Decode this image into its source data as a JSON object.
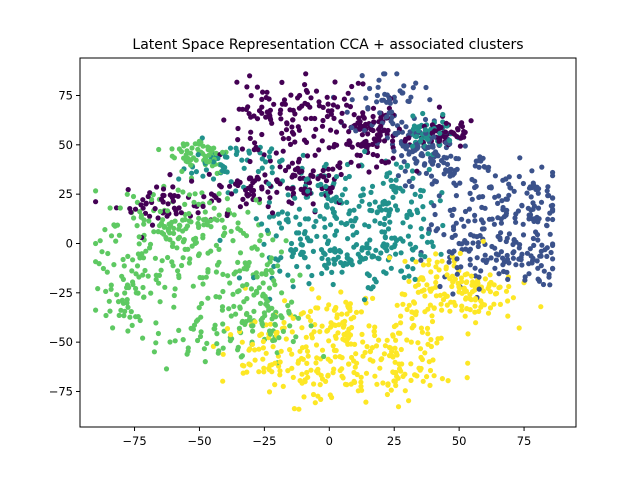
{
  "chart_data": {
    "type": "scatter",
    "title": "Latent Space Representation CCA + associated clusters",
    "xlabel": "",
    "ylabel": "",
    "xlim": [
      -96,
      95
    ],
    "ylim": [
      -93,
      94
    ],
    "xticks": [
      -75,
      -50,
      -25,
      0,
      25,
      50,
      75
    ],
    "yticks": [
      -75,
      -50,
      -25,
      0,
      25,
      50,
      75
    ],
    "grid": false,
    "legend": "none",
    "series": [
      {
        "cluster": 0,
        "color": "#440154",
        "points_per_region": 55,
        "regions": [
          {
            "cx": -5,
            "cy": 68,
            "sx": 11,
            "sy": 9
          },
          {
            "cx": -25,
            "cy": 60,
            "sx": 9,
            "sy": 10
          },
          {
            "cx": 10,
            "cy": 60,
            "sx": 9,
            "sy": 9
          },
          {
            "cx": -30,
            "cy": 28,
            "sx": 9,
            "sy": 6
          },
          {
            "cx": -62,
            "cy": 20,
            "sx": 10,
            "sy": 5
          },
          {
            "cx": 18,
            "cy": 52,
            "sx": 7,
            "sy": 6
          },
          {
            "cx": 45,
            "cy": 56,
            "sx": 6,
            "sy": 4
          },
          {
            "cx": -8,
            "cy": 30,
            "sx": 8,
            "sy": 6
          }
        ]
      },
      {
        "cluster": 1,
        "color": "#3b528b",
        "points_per_region": 55,
        "regions": [
          {
            "cx": 68,
            "cy": 10,
            "sx": 9,
            "sy": 14
          },
          {
            "cx": 55,
            "cy": 28,
            "sx": 10,
            "sy": 10
          },
          {
            "cx": 52,
            "cy": -5,
            "sx": 8,
            "sy": 10
          },
          {
            "cx": 42,
            "cy": 42,
            "sx": 9,
            "sy": 8
          },
          {
            "cx": 22,
            "cy": 72,
            "sx": 7,
            "sy": 9
          },
          {
            "cx": 78,
            "cy": 20,
            "sx": 6,
            "sy": 8
          },
          {
            "cx": 76,
            "cy": -8,
            "sx": 6,
            "sy": 7
          },
          {
            "cx": 32,
            "cy": 50,
            "sx": 6,
            "sy": 6
          }
        ]
      },
      {
        "cluster": 2,
        "color": "#21918c",
        "points_per_region": 55,
        "regions": [
          {
            "cx": 12,
            "cy": 12,
            "sx": 12,
            "sy": 12
          },
          {
            "cx": -3,
            "cy": 25,
            "sx": 10,
            "sy": 9
          },
          {
            "cx": 28,
            "cy": 22,
            "sx": 9,
            "sy": 11
          },
          {
            "cx": -12,
            "cy": 0,
            "sx": 8,
            "sy": 10
          },
          {
            "cx": 25,
            "cy": -5,
            "sx": 9,
            "sy": 8
          },
          {
            "cx": -38,
            "cy": 40,
            "sx": 10,
            "sy": 6
          },
          {
            "cx": 38,
            "cy": 55,
            "sx": 5,
            "sy": 4
          },
          {
            "cx": 5,
            "cy": -8,
            "sx": 10,
            "sy": 6
          }
        ]
      },
      {
        "cluster": 3,
        "color": "#5ec962",
        "points_per_region": 60,
        "regions": [
          {
            "cx": -60,
            "cy": -10,
            "sx": 12,
            "sy": 14
          },
          {
            "cx": -78,
            "cy": -22,
            "sx": 6,
            "sy": 10
          },
          {
            "cx": -48,
            "cy": 10,
            "sx": 10,
            "sy": 10
          },
          {
            "cx": -48,
            "cy": -45,
            "sx": 10,
            "sy": 10
          },
          {
            "cx": -28,
            "cy": -15,
            "sx": 8,
            "sy": 12
          },
          {
            "cx": -68,
            "cy": 12,
            "sx": 10,
            "sy": 8
          },
          {
            "cx": -50,
            "cy": 45,
            "sx": 6,
            "sy": 5
          },
          {
            "cx": -22,
            "cy": -40,
            "sx": 7,
            "sy": 8
          }
        ]
      },
      {
        "cluster": 4,
        "color": "#fde725",
        "points_per_region": 60,
        "regions": [
          {
            "cx": 15,
            "cy": -50,
            "sx": 14,
            "sy": 13
          },
          {
            "cx": -5,
            "cy": -65,
            "sx": 11,
            "sy": 9
          },
          {
            "cx": 35,
            "cy": -35,
            "sx": 10,
            "sy": 10
          },
          {
            "cx": 45,
            "cy": -18,
            "sx": 9,
            "sy": 7
          },
          {
            "cx": -25,
            "cy": -55,
            "sx": 8,
            "sy": 9
          },
          {
            "cx": 25,
            "cy": -65,
            "sx": 10,
            "sy": 7
          },
          {
            "cx": 55,
            "cy": -25,
            "sx": 8,
            "sy": 7
          },
          {
            "cx": 0,
            "cy": -40,
            "sx": 10,
            "sy": 8
          }
        ]
      }
    ]
  }
}
